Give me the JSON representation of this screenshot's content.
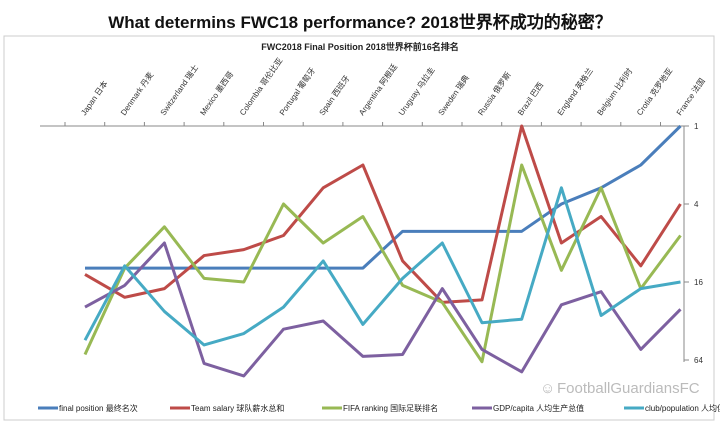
{
  "chart_data": {
    "type": "line",
    "title": "What determins FWC18 performance? 2018世界杯成功的秘密？",
    "subtitle": "FWC2018 Final Position 2018世界杯前16名排名",
    "categories": [
      "Japan 日本",
      "Denmark 丹麦",
      "Switzerland 瑞士",
      "Mexico 墨西哥",
      "Colombia 哥伦比亚",
      "Portugal 葡萄牙",
      "Spain 西班牙",
      "Argentina 阿根廷",
      "Uruguay 乌拉圭",
      "Sweden 瑞典",
      "Russia 俄罗斯",
      "Brazil 巴西",
      "England 英格兰",
      "Belgium 比利时",
      "Crotia 克罗地亚",
      "France 法国"
    ],
    "y_axis": {
      "scale": "log2",
      "reversed": true,
      "ticks": [
        "1",
        "4",
        "16",
        "64"
      ],
      "range": [
        1,
        90
      ],
      "position": "right"
    },
    "legend_position": "bottom",
    "series": [
      {
        "name": "final position 最终名次",
        "color": "#4a7ebb",
        "values": [
          12.5,
          12.5,
          12.5,
          12.5,
          12.5,
          12.5,
          12.5,
          12.5,
          6.5,
          6.5,
          6.5,
          6.5,
          4,
          3,
          2,
          1
        ]
      },
      {
        "name": "Team salary 球队薪水总和",
        "color": "#be4b48",
        "values": [
          14,
          21,
          18,
          10,
          9,
          7,
          3,
          2,
          11,
          23,
          22,
          1,
          8,
          5,
          12,
          4
        ]
      },
      {
        "name": "FIFA ranking 国际足联排名",
        "color": "#98b954",
        "values": [
          58,
          12.5,
          6,
          15,
          16,
          4,
          8,
          5,
          17,
          23,
          66,
          2,
          13,
          3,
          18,
          7
        ]
      },
      {
        "name": "GDP/capita 人均生产总值",
        "color": "#7d60a0",
        "values": [
          25,
          17,
          8,
          68,
          85,
          37,
          32,
          60,
          58,
          18,
          53,
          79,
          24,
          19,
          53,
          26
        ]
      },
      {
        "name": "club/population 人均俱乐部数量",
        "color": "#46aac4",
        "values": [
          45,
          12,
          27,
          49,
          40,
          25,
          11,
          34,
          15,
          8,
          33,
          31,
          3,
          29,
          18,
          16
        ]
      }
    ]
  },
  "watermark": "FootballGuardiansFC"
}
